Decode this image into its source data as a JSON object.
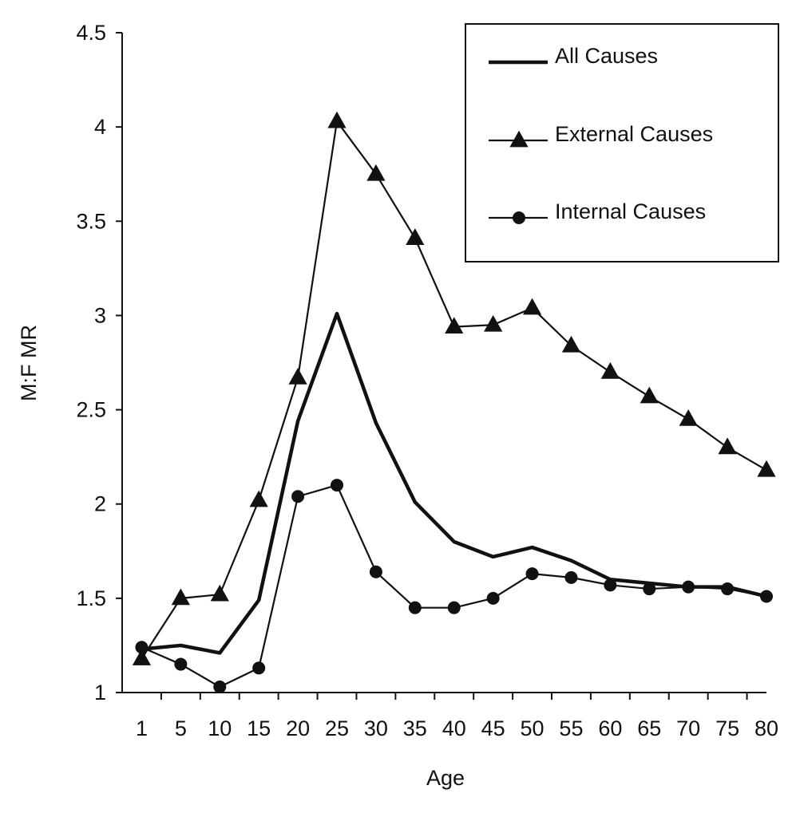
{
  "chart_data": {
    "type": "line",
    "title": "",
    "xlabel": "Age",
    "ylabel": "M:F MR",
    "categories": [
      "1",
      "5",
      "10",
      "15",
      "20",
      "25",
      "30",
      "35",
      "40",
      "45",
      "50",
      "55",
      "60",
      "65",
      "70",
      "75",
      "80"
    ],
    "ylim": [
      1,
      4.5
    ],
    "yticks": [
      "1",
      "1.5",
      "2",
      "2.5",
      "3",
      "3.5",
      "4",
      "4.5"
    ],
    "grid": false,
    "legend_position": "top-right",
    "series": [
      {
        "name": "All Causes",
        "marker": "none",
        "values": [
          1.23,
          1.25,
          1.21,
          1.49,
          2.44,
          3.01,
          2.43,
          2.01,
          1.8,
          1.72,
          1.77,
          1.7,
          1.6,
          1.58,
          1.56,
          1.56,
          1.51
        ]
      },
      {
        "name": "External Causes",
        "marker": "triangle",
        "values": [
          1.18,
          1.5,
          1.52,
          2.02,
          2.67,
          4.03,
          3.75,
          3.41,
          2.94,
          2.95,
          3.04,
          2.84,
          2.7,
          2.57,
          2.45,
          2.3,
          2.18
        ]
      },
      {
        "name": "Internal Causes",
        "marker": "circle",
        "values": [
          1.24,
          1.15,
          1.03,
          1.13,
          2.04,
          2.1,
          1.64,
          1.45,
          1.45,
          1.5,
          1.63,
          1.61,
          1.57,
          1.55,
          1.56,
          1.55,
          1.51
        ]
      }
    ]
  }
}
